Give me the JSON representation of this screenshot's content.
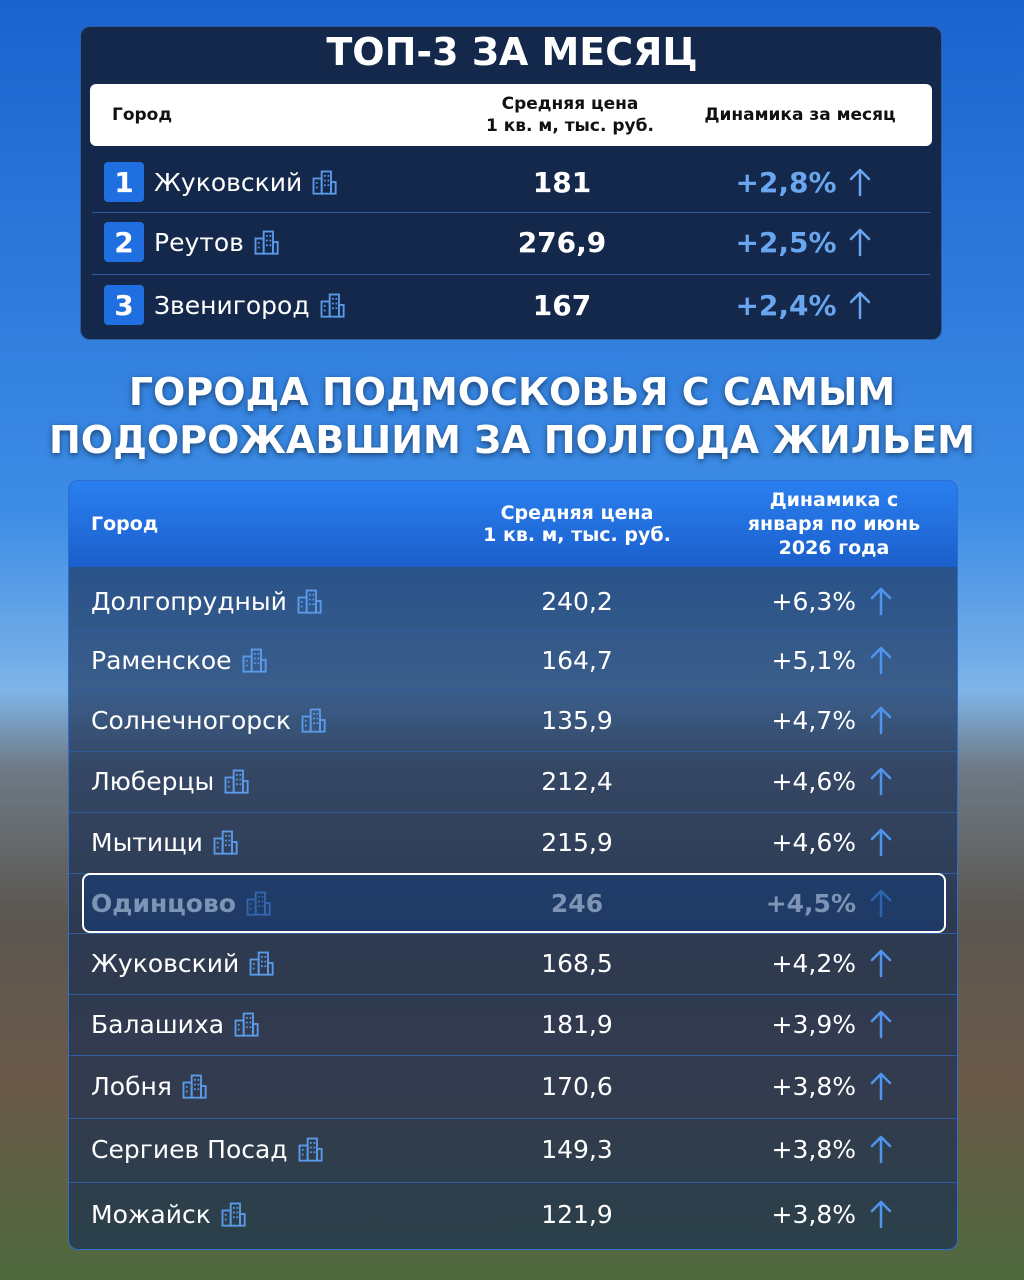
{
  "top3": {
    "title": "ТОП-3 ЗА МЕСЯЦ",
    "header": [
      [
        "Город"
      ],
      [
        "Средняя цена",
        "1 кв. м, тыс. руб."
      ],
      [
        "Динамика за месяц"
      ]
    ],
    "rows": [
      [
        "1",
        "Жуковский",
        "181",
        "+2,8%"
      ],
      [
        "2",
        "Реутов",
        "276,9",
        "+2,5%"
      ],
      [
        "3",
        "Звенигород",
        "167",
        "+2,4%"
      ]
    ]
  },
  "main": {
    "title": [
      "ГОРОДА ПОДМОСКОВЬЯ С САМЫМ",
      "ПОДОРОЖАВШИМ ЗА ПОЛГОДА ЖИЛЬЕМ"
    ],
    "header": [
      [
        "Город"
      ],
      [
        "Средняя цена",
        "1 кв. м, тыс. руб."
      ],
      [
        "Динамика с",
        "января по июнь",
        "2026 года"
      ]
    ],
    "rows": [
      [
        "Долгопрудный",
        "240,2",
        "+6,3%"
      ],
      [
        "Раменское",
        "164,7",
        "+5,1%"
      ],
      [
        "Солнечногорск",
        "135,9",
        "+4,7%"
      ],
      [
        "Люберцы",
        "212,4",
        "+4,6%"
      ],
      [
        "Мытищи",
        "215,9",
        "+4,6%"
      ],
      [
        "Одинцово",
        "246",
        "+4,5%"
      ],
      [
        "Жуковский",
        "168,5",
        "+4,2%"
      ],
      [
        "Балашиха",
        "181,9",
        "+3,9%"
      ],
      [
        "Лобня",
        "170,6",
        "+3,8%"
      ],
      [
        "Сергиев Посад",
        "149,3",
        "+3,8%"
      ],
      [
        "Можайск",
        "121,9",
        "+3,8%"
      ]
    ],
    "highlight_row": 5
  }
}
